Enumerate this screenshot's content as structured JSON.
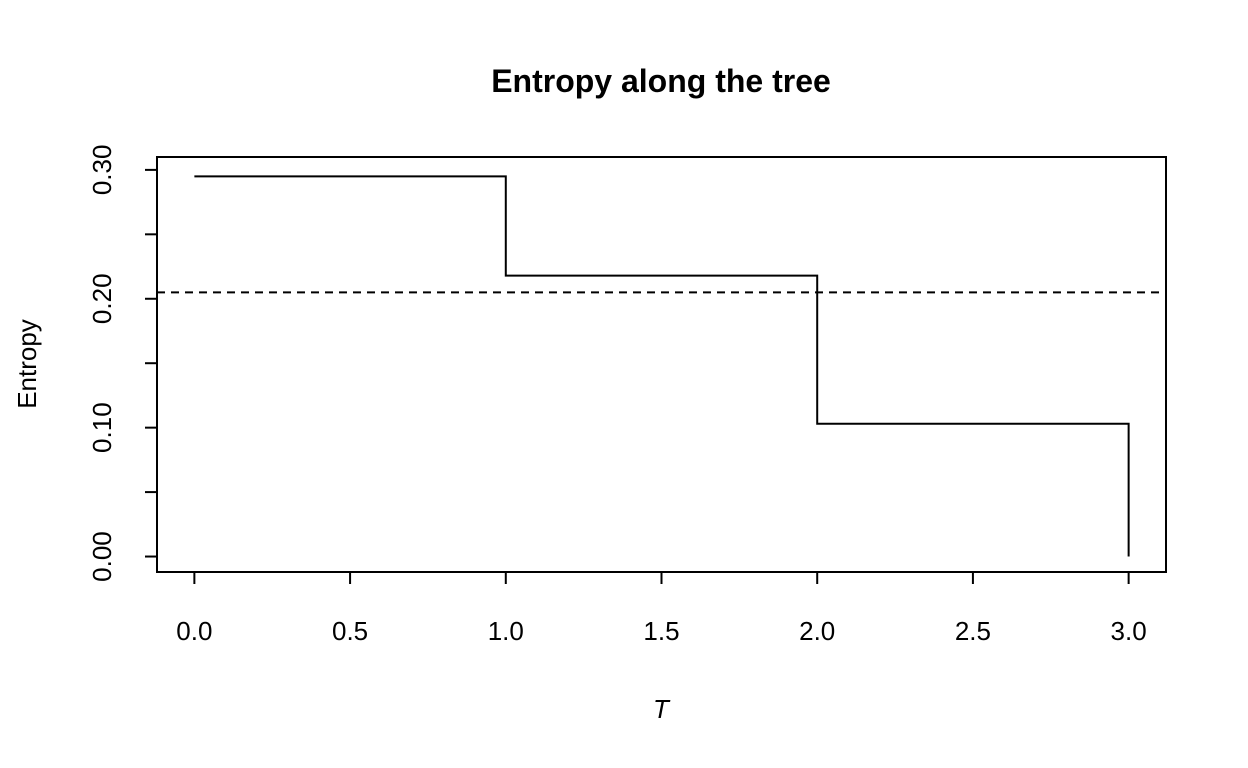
{
  "chart_data": {
    "type": "line",
    "title": "Entropy along the tree",
    "xlabel": "T",
    "ylabel": "Entropy",
    "xlim": [
      -0.12,
      3.12
    ],
    "ylim": [
      -0.012,
      0.31
    ],
    "x_ticks": [
      0.0,
      0.5,
      1.0,
      1.5,
      2.0,
      2.5,
      3.0
    ],
    "x_tick_labels": [
      "0.0",
      "0.5",
      "1.0",
      "1.5",
      "2.0",
      "2.5",
      "3.0"
    ],
    "y_ticks": [
      0.0,
      0.05,
      0.1,
      0.15,
      0.2,
      0.25,
      0.3
    ],
    "y_tick_labels": [
      "0.00",
      "",
      "0.10",
      "",
      "0.20",
      "",
      "0.30"
    ],
    "grid": false,
    "series": [
      {
        "style": "step",
        "color": "#000000",
        "x": [
          0,
          1,
          2,
          3
        ],
        "y": [
          0.295,
          0.218,
          0.103,
          0.0
        ]
      }
    ],
    "reference_lines": [
      {
        "orientation": "horizontal",
        "y": 0.205,
        "style": "dashed",
        "color": "#000000"
      }
    ]
  }
}
